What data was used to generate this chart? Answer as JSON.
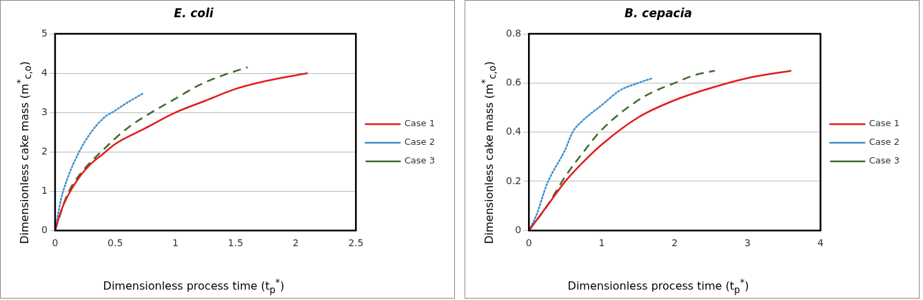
{
  "chart_data": [
    {
      "type": "line",
      "title": "E. coli",
      "xlabel": "Dimensionless process time (t$_{p}$$^{*}$)",
      "ylabel": "Dimensionless cake mass (m$^{*}$$_{c,o}$)",
      "xlim": [
        0,
        2.5
      ],
      "xticks": [
        0,
        0.5,
        1,
        1.5,
        2,
        2.5
      ],
      "ylim": [
        0,
        5
      ],
      "yticks": [
        0,
        1,
        2,
        3,
        4,
        5
      ],
      "grid": "y",
      "legend": "right",
      "marker": "none",
      "series": [
        {
          "name": "Case 1",
          "color": "#e41a1c",
          "line_style": "solid",
          "x": [
            0,
            0.05,
            0.1,
            0.2,
            0.3,
            0.4,
            0.5,
            0.75,
            1,
            1.25,
            1.5,
            1.75,
            2.1
          ],
          "values": [
            0,
            0.5,
            0.85,
            1.35,
            1.7,
            1.95,
            2.2,
            2.6,
            3.0,
            3.3,
            3.6,
            3.8,
            4.0
          ]
        },
        {
          "name": "Case 2",
          "color": "#3a8fd0",
          "line_style": "dotted",
          "x": [
            0,
            0.05,
            0.1,
            0.2,
            0.3,
            0.4,
            0.5,
            0.6,
            0.74
          ],
          "values": [
            0,
            0.8,
            1.3,
            2.0,
            2.5,
            2.85,
            3.05,
            3.25,
            3.5
          ]
        },
        {
          "name": "Case 3",
          "color": "#3f6b2e",
          "line_style": "dashed",
          "x": [
            0,
            0.1,
            0.2,
            0.4,
            0.6,
            0.8,
            1,
            1.2,
            1.4,
            1.6
          ],
          "values": [
            0,
            0.9,
            1.4,
            2.05,
            2.6,
            3.0,
            3.35,
            3.7,
            3.95,
            4.15
          ]
        }
      ]
    },
    {
      "type": "line",
      "title": "B. cepacia",
      "xlabel": "Dimensionless process time (t$_{p}$$^{*}$)",
      "ylabel": "Dimensionless cake mass (m$^{*}$$_{c,o}$)",
      "xlim": [
        0,
        4
      ],
      "xticks": [
        0,
        1,
        2,
        3,
        4
      ],
      "ylim": [
        0,
        0.8
      ],
      "yticks": [
        0,
        0.2,
        0.4,
        0.6,
        0.8
      ],
      "grid": "y",
      "legend": "right",
      "marker": "none",
      "series": [
        {
          "name": "Case 1",
          "color": "#e41a1c",
          "line_style": "solid",
          "x": [
            0,
            0.25,
            0.5,
            0.75,
            1,
            1.5,
            2,
            2.5,
            3,
            3.6
          ],
          "values": [
            0,
            0.1,
            0.2,
            0.28,
            0.35,
            0.46,
            0.53,
            0.58,
            0.62,
            0.65
          ]
        },
        {
          "name": "Case 2",
          "color": "#3a8fd0",
          "line_style": "dotted",
          "x": [
            0,
            0.1,
            0.25,
            0.5,
            0.6,
            0.75,
            1,
            1.25,
            1.5,
            1.7
          ],
          "values": [
            0,
            0.06,
            0.19,
            0.33,
            0.4,
            0.45,
            0.51,
            0.57,
            0.6,
            0.62
          ]
        },
        {
          "name": "Case 3",
          "color": "#3f6b2e",
          "line_style": "dashed",
          "x": [
            0,
            0.25,
            0.5,
            0.75,
            1,
            1.5,
            1.75,
            2,
            2.25,
            2.55
          ],
          "values": [
            0,
            0.1,
            0.22,
            0.32,
            0.41,
            0.53,
            0.57,
            0.6,
            0.63,
            0.65
          ]
        }
      ]
    }
  ]
}
